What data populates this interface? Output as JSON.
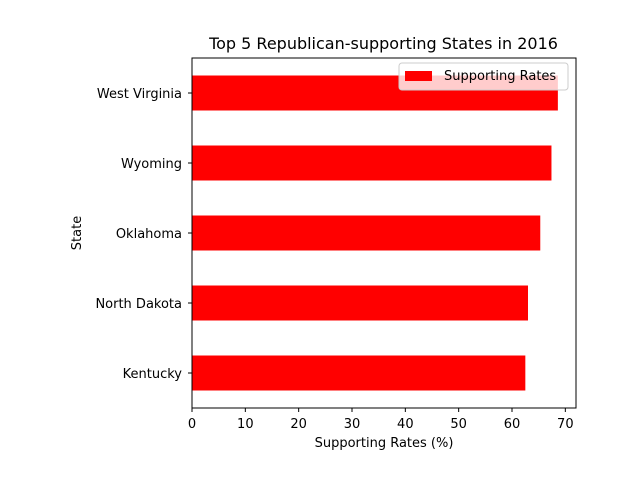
{
  "chart_data": {
    "type": "bar",
    "orientation": "horizontal",
    "title": "Top 5 Republican-supporting States in 2016",
    "xlabel": "Supporting Rates (%)",
    "ylabel": "State",
    "categories": [
      "Kentucky",
      "North Dakota",
      "Oklahoma",
      "Wyoming",
      "West Virginia"
    ],
    "series": [
      {
        "name": "Supporting Rates",
        "values": [
          62.5,
          63.0,
          65.3,
          67.4,
          68.6
        ],
        "color": "#ff0000"
      }
    ],
    "xlim": [
      0,
      72
    ],
    "xticks": [
      0,
      10,
      20,
      30,
      40,
      50,
      60,
      70
    ],
    "legend_position": "top-right",
    "grid": false
  }
}
